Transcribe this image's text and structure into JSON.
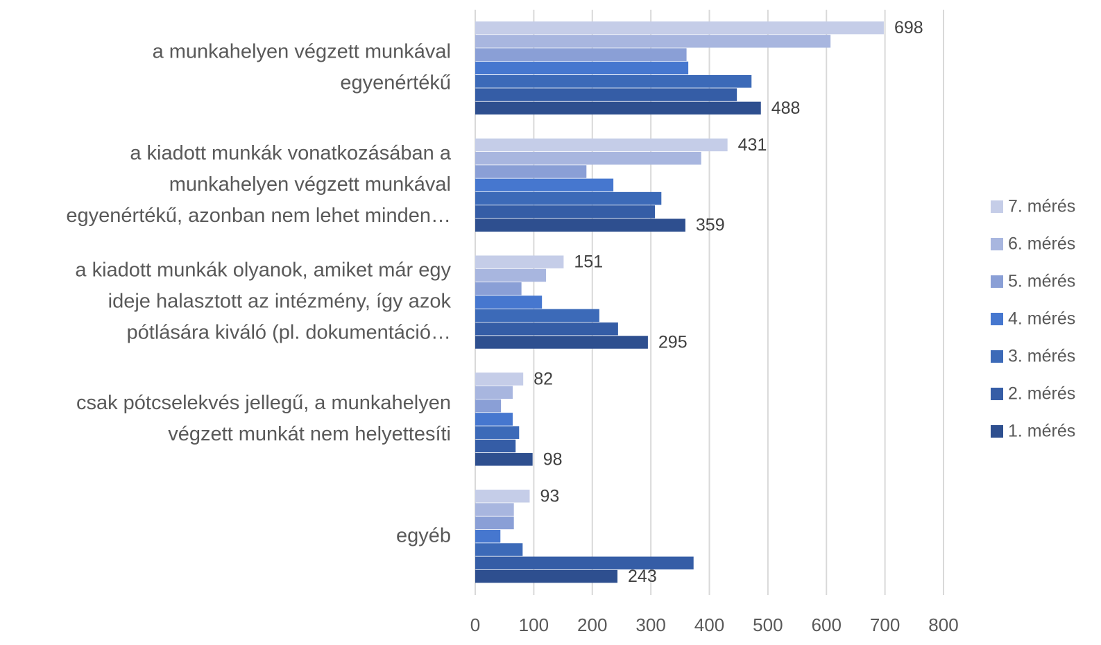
{
  "chart_data": {
    "type": "hbar",
    "categories": [
      [
        "a munkahelyen végzett munkával",
        "egyenértékű"
      ],
      [
        "a kiadott munkák vonatkozásában a",
        "munkahelyen végzett munkával",
        "egyenértékű, azonban nem lehet minden…"
      ],
      [
        "a kiadott munkák olyanok, amiket már egy",
        "ideje halasztott az intézmény, így azok",
        "pótlására kiváló (pl. dokumentáció…"
      ],
      [
        "csak pótcselekvés jellegű, a munkahelyen",
        "végzett munkát nem helyettesíti"
      ],
      [
        "egyéb"
      ]
    ],
    "series": [
      {
        "name": "7. mérés",
        "color": "#c5cde8",
        "labels": true,
        "values": [
          698,
          431,
          151,
          82,
          93
        ]
      },
      {
        "name": "6. mérés",
        "color": "#a8b6df",
        "values": [
          607,
          386,
          121,
          64,
          66
        ]
      },
      {
        "name": "5. mérés",
        "color": "#8a9fd6",
        "values": [
          361,
          190,
          79,
          44,
          66
        ]
      },
      {
        "name": "4. mérés",
        "color": "#4677cf",
        "values": [
          364,
          236,
          114,
          64,
          43
        ]
      },
      {
        "name": "3. mérés",
        "color": "#3c6ab8",
        "values": [
          472,
          318,
          212,
          75,
          81
        ]
      },
      {
        "name": "2. mérés",
        "color": "#355da6",
        "values": [
          447,
          307,
          244,
          69,
          373
        ]
      },
      {
        "name": "1. mérés",
        "color": "#2e4f8f",
        "labels": true,
        "values": [
          488,
          359,
          295,
          98,
          243
        ]
      }
    ],
    "xlim": [
      0,
      800
    ],
    "xticks": [
      0,
      100,
      200,
      300,
      400,
      500,
      600,
      700,
      800
    ],
    "grid": true,
    "legend": "right"
  }
}
